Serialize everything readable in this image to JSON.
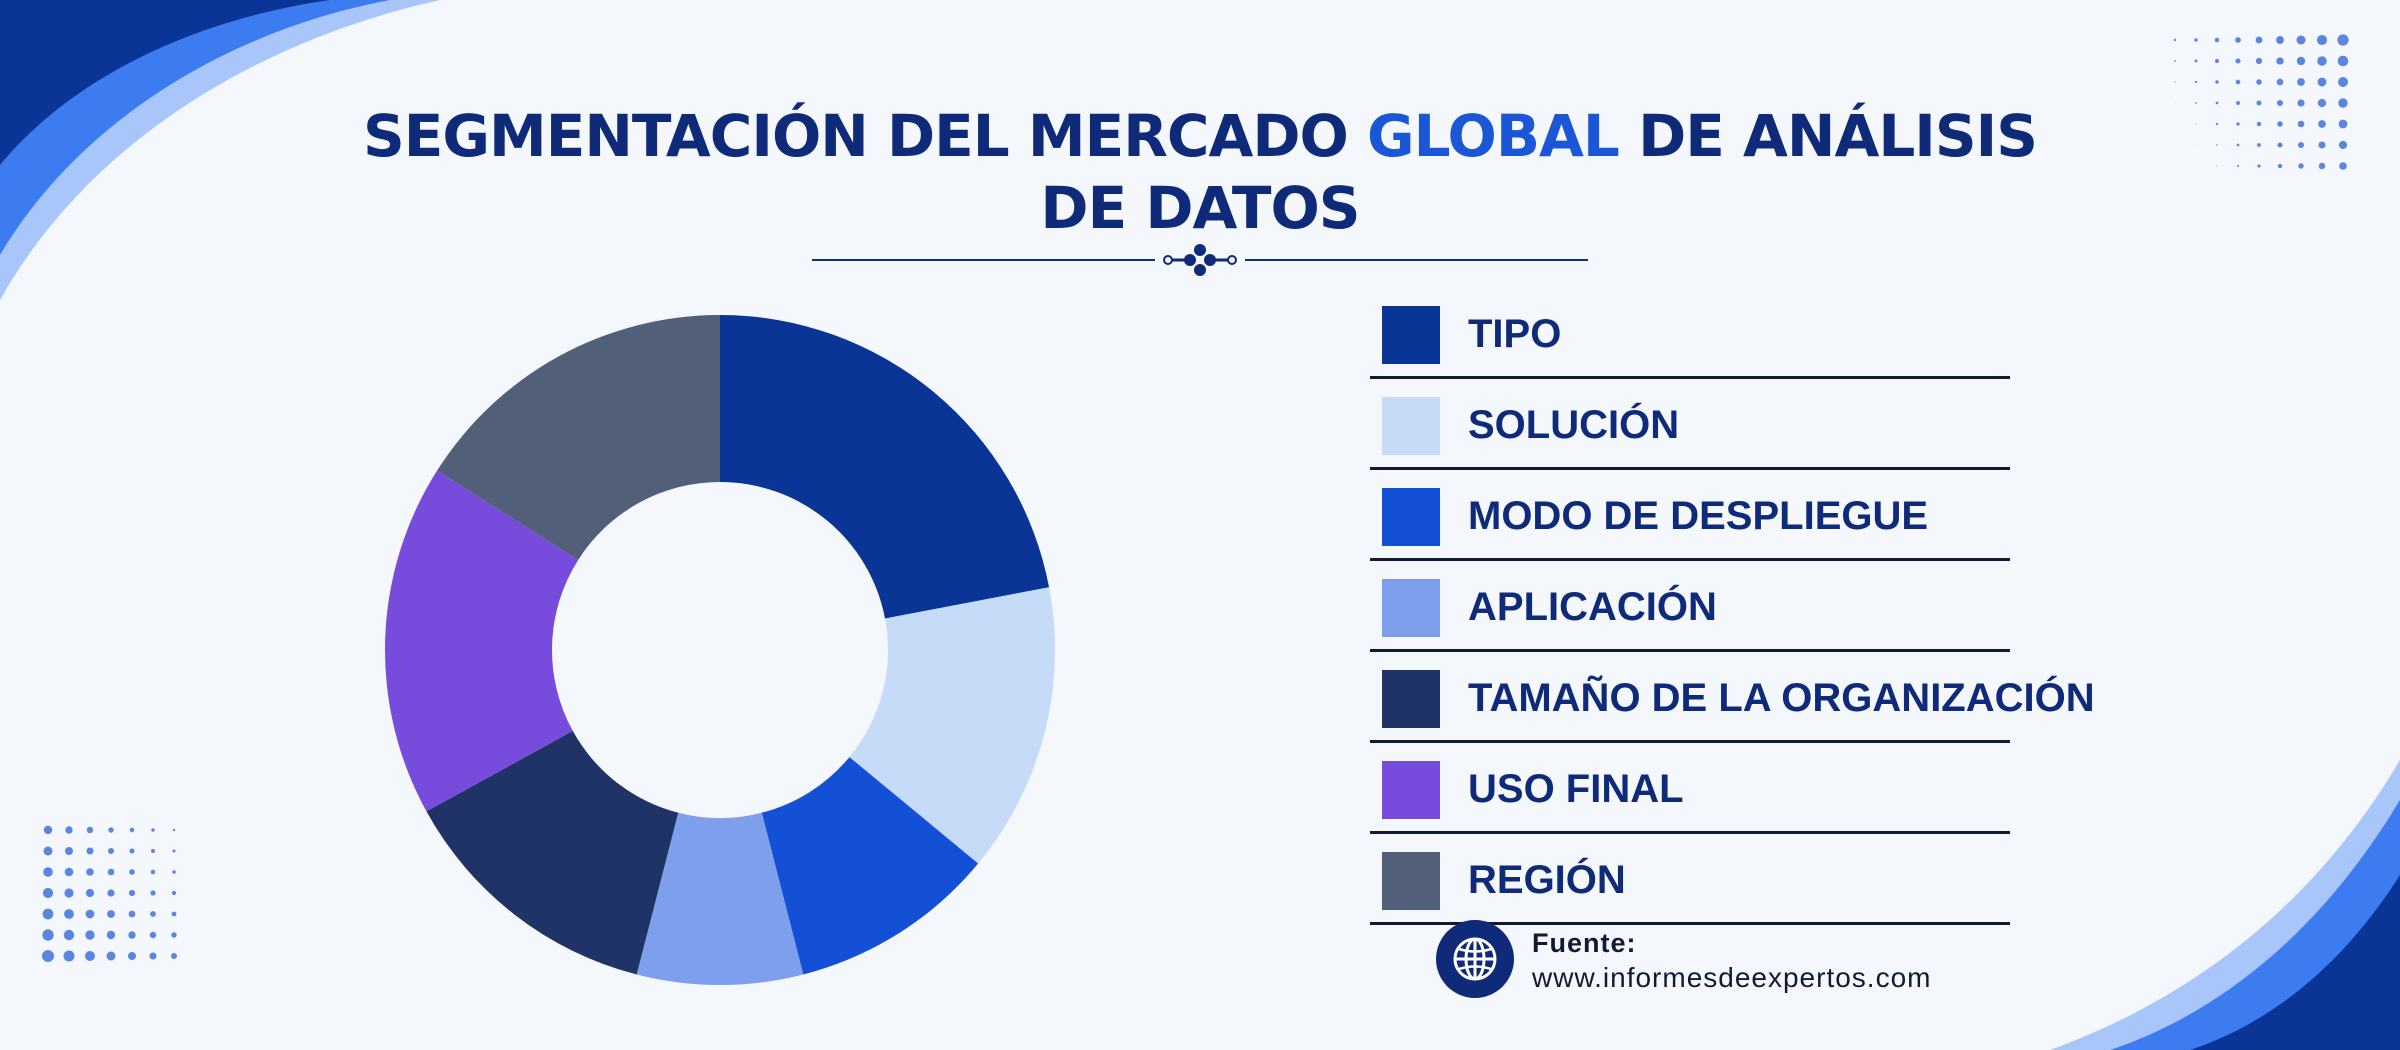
{
  "title": {
    "part1": "SEGMENTACIÓN DEL MERCADO ",
    "highlight": "GLOBAL",
    "part2": " DE ANÁLISIS",
    "line2": "DE DATOS"
  },
  "chart_data": {
    "type": "pie",
    "style": "donut",
    "title": "SEGMENTACIÓN DEL MERCADO GLOBAL DE ANÁLISIS DE DATOS",
    "legend_position": "right",
    "series": [
      {
        "name": "TIPO",
        "value": 22,
        "color": "#0a3596"
      },
      {
        "name": "SOLUCIÓN",
        "value": 14,
        "color": "#c5dbf7"
      },
      {
        "name": "MODO DE DESPLIEGUE",
        "value": 10,
        "color": "#1450d6"
      },
      {
        "name": "APLICACIÓN",
        "value": 8,
        "color": "#7ea0ec"
      },
      {
        "name": "TAMAÑO DE LA ORGANIZACIÓN",
        "value": 13,
        "color": "#1f3366"
      },
      {
        "name": "USO FINAL",
        "value": 17,
        "color": "#774bdc"
      },
      {
        "name": "REGIÓN",
        "value": 16,
        "color": "#525f78"
      }
    ]
  },
  "source": {
    "label": "Fuente:",
    "url": "www.informesdeexpertos.com",
    "icon": "globe-icon"
  },
  "colors": {
    "title": "#0f2a78",
    "accent": "#1b56d6",
    "background": "#f4f7fc"
  }
}
